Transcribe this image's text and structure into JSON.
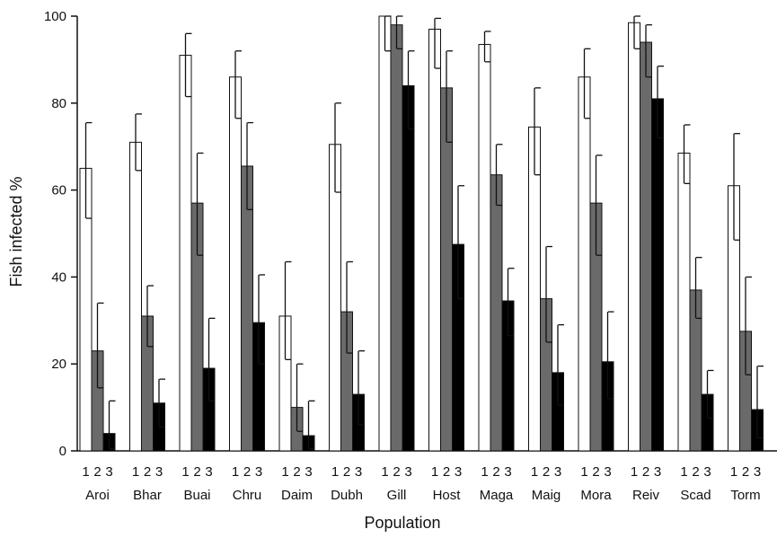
{
  "chart_data": {
    "type": "bar",
    "xlabel": "Population",
    "ylabel": "Fish infected %",
    "ylim": [
      0,
      100
    ],
    "yticks": [
      0,
      20,
      40,
      60,
      80,
      100
    ],
    "grid": false,
    "legend": "none",
    "subgroup_labels": [
      "1",
      "2",
      "3"
    ],
    "categories": [
      "Aroi",
      "Bhar",
      "Buai",
      "Chru",
      "Daim",
      "Dubh",
      "Gill",
      "Host",
      "Maga",
      "Maig",
      "Mora",
      "Reiv",
      "Scad",
      "Torm"
    ],
    "series": [
      {
        "label": "1",
        "color": "#ffffff",
        "values": [
          65,
          71,
          91,
          86,
          31,
          70.5,
          100,
          97,
          93.5,
          74.5,
          86,
          98.5,
          68.5,
          61
        ],
        "err_low": [
          53.5,
          64.5,
          81.5,
          76.5,
          21,
          59.5,
          92,
          88,
          89.5,
          63.5,
          76.5,
          92.5,
          61.5,
          48.5
        ],
        "err_high": [
          75.5,
          77.5,
          96,
          92,
          43.5,
          80,
          100,
          99.5,
          96.5,
          83.5,
          92.5,
          100,
          75,
          73
        ]
      },
      {
        "label": "2",
        "color": "#6a6a6a",
        "values": [
          23,
          31,
          57,
          65.5,
          10,
          32,
          98,
          83.5,
          63.5,
          35,
          57,
          94,
          37,
          27.5
        ],
        "err_low": [
          14.5,
          24,
          45,
          55.5,
          4.5,
          22.5,
          92.5,
          71,
          56.5,
          25,
          45,
          86,
          30.5,
          17.5
        ],
        "err_high": [
          34,
          38,
          68.5,
          75.5,
          20,
          43.5,
          100,
          92,
          70.5,
          47,
          68,
          98,
          44.5,
          40
        ]
      },
      {
        "label": "3",
        "color": "#000000",
        "values": [
          4,
          11,
          19,
          29.5,
          3.5,
          13,
          84,
          47.5,
          34.5,
          18,
          20.5,
          81,
          13,
          9.5
        ],
        "err_low": [
          0.5,
          5.5,
          11.5,
          20,
          0.5,
          6,
          74,
          35,
          26.5,
          10.5,
          12,
          72,
          7.5,
          3
        ],
        "err_high": [
          11.5,
          16.5,
          30.5,
          40.5,
          11.5,
          23,
          92,
          61,
          42,
          29,
          32,
          88.5,
          18.5,
          19.5
        ]
      }
    ]
  }
}
